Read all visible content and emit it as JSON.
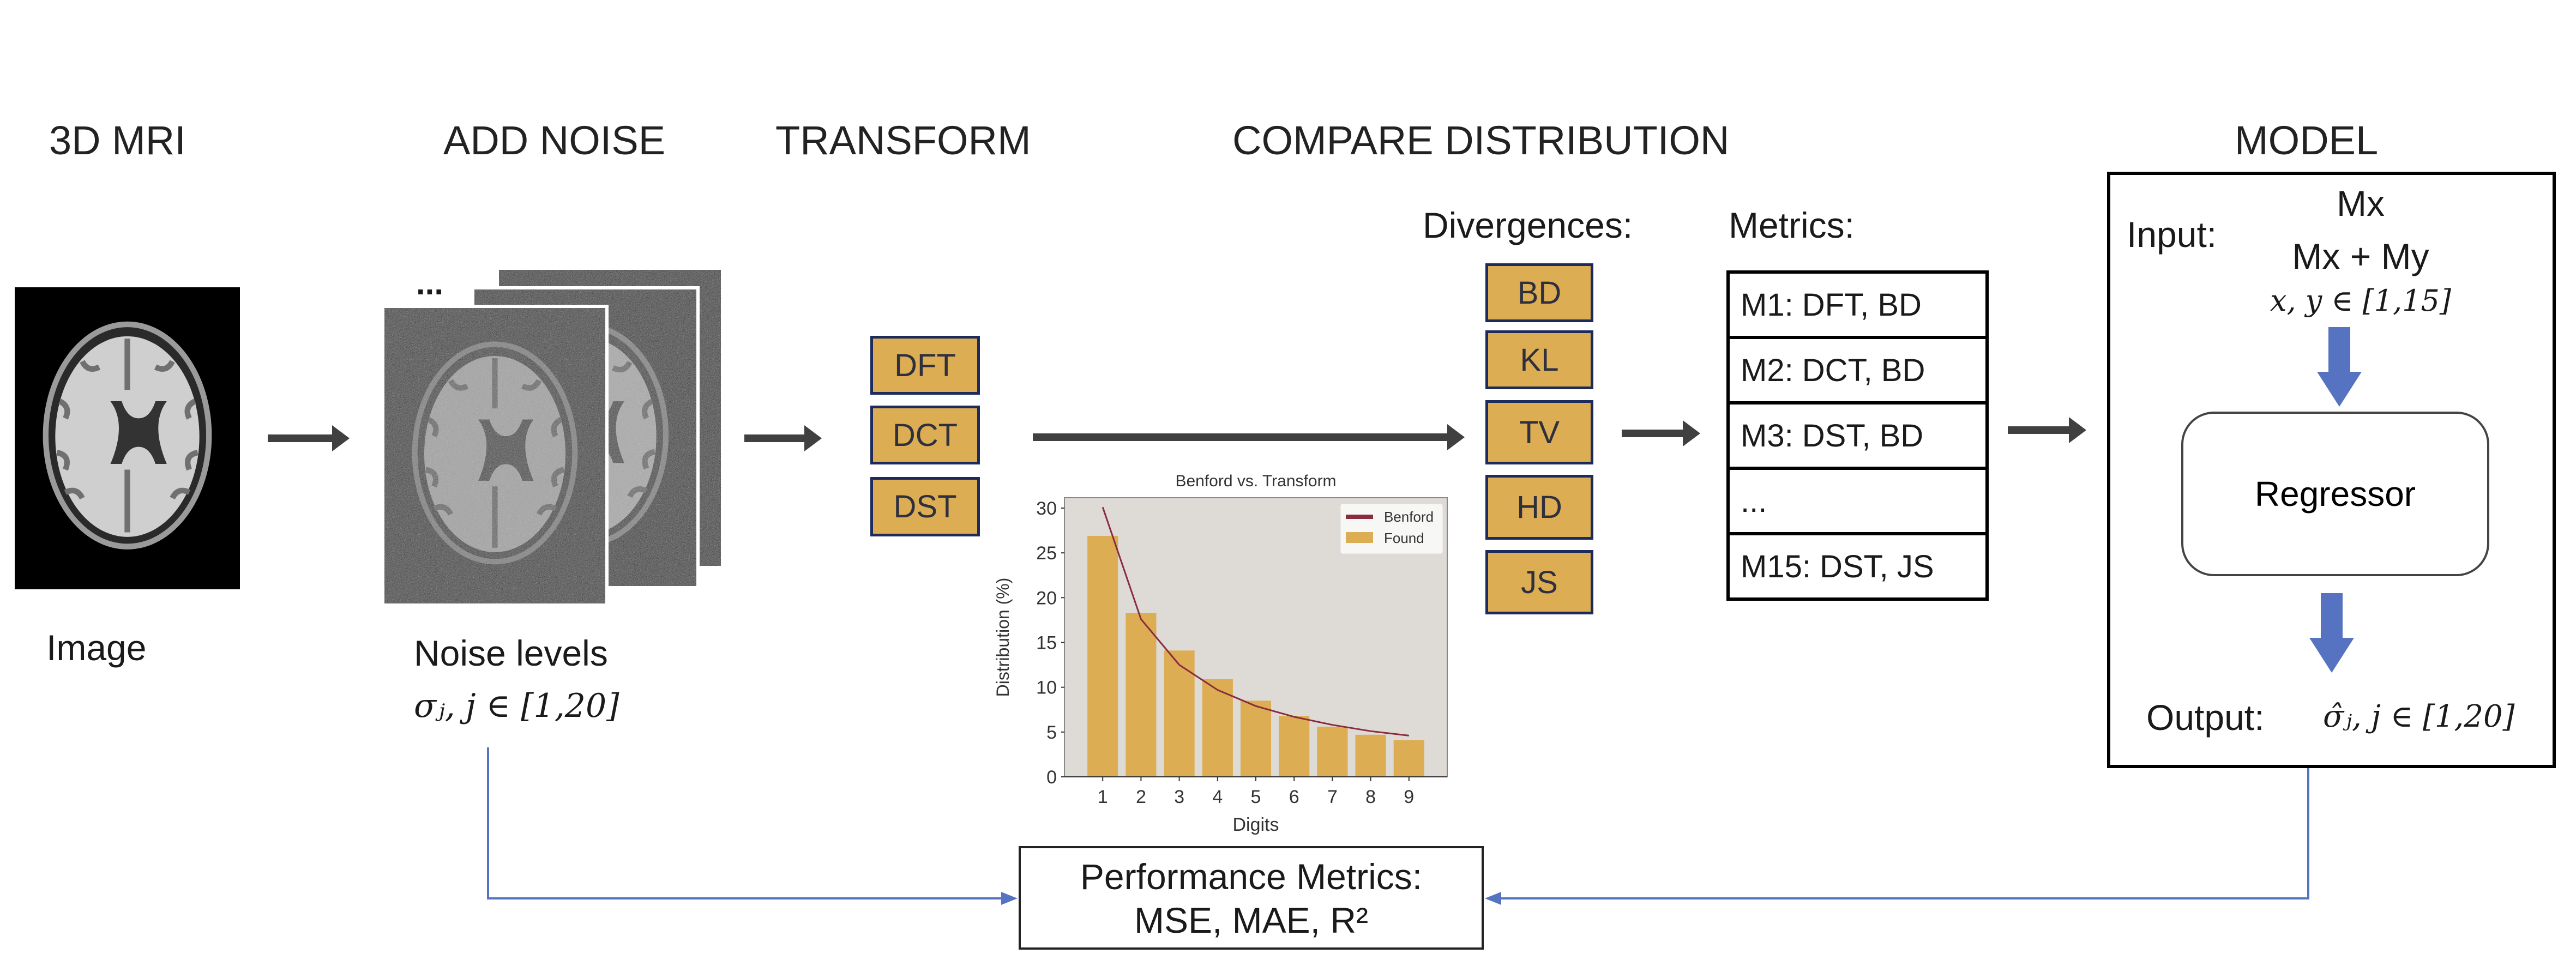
{
  "stages": {
    "mri": "3D MRI",
    "noise": "ADD NOISE",
    "transform": "TRANSFORM",
    "compare": "COMPARE DISTRIBUTION",
    "model": "MODEL"
  },
  "mri": {
    "caption": "Image"
  },
  "noise": {
    "ellipsis": "...",
    "caption": "Noise levels",
    "formula": "σⱼ, j ∈ [1,20]"
  },
  "transforms": [
    "DFT",
    "DCT",
    "DST"
  ],
  "divergences": {
    "label": "Divergences:",
    "items": [
      "BD",
      "KL",
      "TV",
      "HD",
      "JS"
    ]
  },
  "metrics": {
    "label": "Metrics:",
    "rows": [
      "M1: DFT, BD",
      "M2: DCT, BD",
      "M3: DST, BD",
      "...",
      "M15: DST, JS"
    ]
  },
  "model": {
    "input_label": "Input:",
    "input_line1": "Mx",
    "input_line2": "Mx + My",
    "input_range": "x, y ∈ [1,15]",
    "regressor": "Regressor",
    "output_label": "Output:",
    "output_formula": "σ̂ⱼ, j ∈ [1,20]"
  },
  "performance": {
    "line1": "Performance Metrics:",
    "line2": "MSE, MAE, R²"
  },
  "colors": {
    "gold": "#dcad52",
    "navy": "#1c2a5c",
    "blue": "#5673c1",
    "benford": "#8b2b3e",
    "plot_bg": "#dedbd7"
  },
  "chart_data": {
    "type": "bar",
    "title": "Benford vs. Transform",
    "xlabel": "Digits",
    "ylabel": "Distribution (%)",
    "categories": [
      1,
      2,
      3,
      4,
      5,
      6,
      7,
      8,
      9
    ],
    "xlim": [
      0,
      10
    ],
    "ylim": [
      0,
      30
    ],
    "yticks": [
      0,
      5,
      10,
      15,
      20,
      25,
      30
    ],
    "legend_position": "top-right",
    "series": [
      {
        "name": "Benford",
        "kind": "line",
        "values": [
          30.1,
          17.6,
          12.5,
          9.7,
          7.9,
          6.7,
          5.8,
          5.1,
          4.6
        ]
      },
      {
        "name": "Found",
        "kind": "bar",
        "values": [
          26.9,
          18.3,
          14.1,
          10.9,
          8.5,
          6.8,
          5.6,
          4.7,
          4.1
        ]
      }
    ]
  }
}
